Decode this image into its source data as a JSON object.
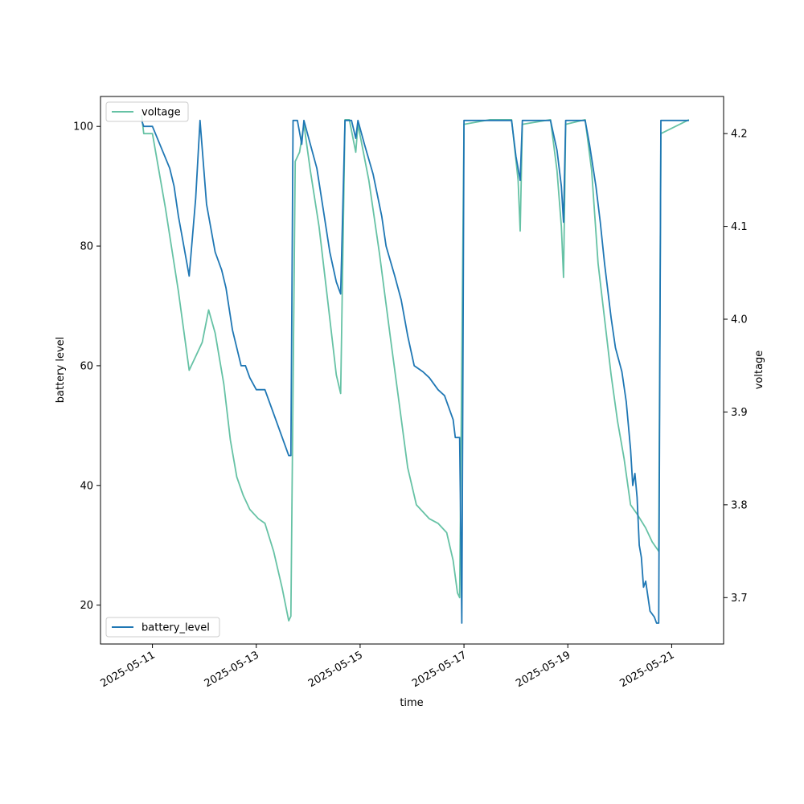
{
  "chart_data": {
    "type": "line",
    "xlabel": "time",
    "ylabel_left": "battery level",
    "ylabel_right": "voltage",
    "x_range": [
      "2025-05-10T00:00",
      "2025-05-22T00:00"
    ],
    "x_ticks": [
      "2025-05-11",
      "2025-05-13",
      "2025-05-15",
      "2025-05-17",
      "2025-05-19",
      "2025-05-21"
    ],
    "ylim_left": [
      13.5,
      105
    ],
    "y_ticks_left": [
      20,
      40,
      60,
      80,
      100
    ],
    "ylim_right": [
      3.65,
      4.24
    ],
    "y_ticks_right": [
      3.7,
      3.8,
      3.9,
      4.0,
      4.1,
      4.2
    ],
    "grid": false,
    "series": [
      {
        "name": "battery_level",
        "axis": "left",
        "color": "#1f77b4",
        "legend_position": "lower-left",
        "points": [
          [
            "2025-05-10T19:00",
            101
          ],
          [
            "2025-05-10T20:00",
            100
          ],
          [
            "2025-05-11T00:00",
            100
          ],
          [
            "2025-05-11T08:00",
            93
          ],
          [
            "2025-05-11T10:00",
            90
          ],
          [
            "2025-05-11T12:00",
            85
          ],
          [
            "2025-05-11T14:00",
            81
          ],
          [
            "2025-05-11T17:00",
            75
          ],
          [
            "2025-05-11T20:00",
            88
          ],
          [
            "2025-05-11T22:00",
            101
          ],
          [
            "2025-05-12T01:00",
            87
          ],
          [
            "2025-05-12T05:00",
            79
          ],
          [
            "2025-05-12T08:00",
            76
          ],
          [
            "2025-05-12T10:00",
            73
          ],
          [
            "2025-05-12T13:00",
            66
          ],
          [
            "2025-05-12T15:00",
            63
          ],
          [
            "2025-05-12T17:00",
            60
          ],
          [
            "2025-05-12T19:00",
            60
          ],
          [
            "2025-05-12T21:00",
            58
          ],
          [
            "2025-05-13T00:00",
            56
          ],
          [
            "2025-05-13T04:00",
            56
          ],
          [
            "2025-05-13T09:00",
            51
          ],
          [
            "2025-05-13T14:00",
            46
          ],
          [
            "2025-05-13T15:00",
            45
          ],
          [
            "2025-05-13T16:00",
            45
          ],
          [
            "2025-05-13T17:00",
            101
          ],
          [
            "2025-05-13T19:00",
            101
          ],
          [
            "2025-05-13T21:00",
            97
          ],
          [
            "2025-05-13T22:00",
            101
          ],
          [
            "2025-05-14T01:00",
            97
          ],
          [
            "2025-05-14T04:00",
            93
          ],
          [
            "2025-05-14T07:00",
            86
          ],
          [
            "2025-05-14T10:00",
            79
          ],
          [
            "2025-05-14T13:00",
            74
          ],
          [
            "2025-05-14T15:00",
            72
          ],
          [
            "2025-05-14T17:00",
            101
          ],
          [
            "2025-05-14T20:00",
            101
          ],
          [
            "2025-05-14T22:00",
            98
          ],
          [
            "2025-05-14T23:00",
            101
          ],
          [
            "2025-05-15T02:00",
            97
          ],
          [
            "2025-05-15T06:00",
            92
          ],
          [
            "2025-05-15T10:00",
            85
          ],
          [
            "2025-05-15T12:00",
            80
          ],
          [
            "2025-05-15T16:00",
            75
          ],
          [
            "2025-05-15T19:00",
            71
          ],
          [
            "2025-05-15T22:00",
            65
          ],
          [
            "2025-05-16T01:00",
            60
          ],
          [
            "2025-05-16T05:00",
            59
          ],
          [
            "2025-05-16T08:00",
            58
          ],
          [
            "2025-05-16T12:00",
            56
          ],
          [
            "2025-05-16T15:00",
            55
          ],
          [
            "2025-05-16T19:00",
            51
          ],
          [
            "2025-05-16T20:00",
            48
          ],
          [
            "2025-05-16T22:00",
            48
          ],
          [
            "2025-05-16T23:00",
            17
          ],
          [
            "2025-05-17T00:00",
            101
          ],
          [
            "2025-05-17T12:00",
            101
          ],
          [
            "2025-05-17T20:00",
            101
          ],
          [
            "2025-05-17T22:00",
            101
          ],
          [
            "2025-05-18T00:00",
            95
          ],
          [
            "2025-05-18T02:00",
            91
          ],
          [
            "2025-05-18T03:00",
            101
          ],
          [
            "2025-05-18T10:00",
            101
          ],
          [
            "2025-05-18T16:00",
            101
          ],
          [
            "2025-05-18T19:00",
            96
          ],
          [
            "2025-05-18T21:00",
            90
          ],
          [
            "2025-05-18T22:00",
            84
          ],
          [
            "2025-05-18T23:00",
            101
          ],
          [
            "2025-05-19T08:00",
            101
          ],
          [
            "2025-05-19T10:00",
            97
          ],
          [
            "2025-05-19T13:00",
            90
          ],
          [
            "2025-05-19T15:00",
            84
          ],
          [
            "2025-05-19T17:00",
            77
          ],
          [
            "2025-05-19T20:00",
            68
          ],
          [
            "2025-05-19T22:00",
            63
          ],
          [
            "2025-05-20T01:00",
            59
          ],
          [
            "2025-05-20T03:00",
            54
          ],
          [
            "2025-05-20T05:00",
            46
          ],
          [
            "2025-05-20T06:00",
            40
          ],
          [
            "2025-05-20T07:00",
            42
          ],
          [
            "2025-05-20T08:00",
            38
          ],
          [
            "2025-05-20T09:00",
            30
          ],
          [
            "2025-05-20T10:00",
            28
          ],
          [
            "2025-05-20T11:00",
            23
          ],
          [
            "2025-05-20T12:00",
            24
          ],
          [
            "2025-05-20T14:00",
            19
          ],
          [
            "2025-05-20T16:00",
            18
          ],
          [
            "2025-05-20T17:00",
            17
          ],
          [
            "2025-05-20T18:00",
            17
          ],
          [
            "2025-05-20T19:00",
            101
          ],
          [
            "2025-05-21T08:00",
            101
          ]
        ]
      },
      {
        "name": "voltage",
        "axis": "right",
        "color": "#66c2a5",
        "legend_position": "upper-left",
        "points": [
          [
            "2025-05-10T19:00",
            4.22
          ],
          [
            "2025-05-10T20:00",
            4.2
          ],
          [
            "2025-05-11T00:00",
            4.2
          ],
          [
            "2025-05-11T06:00",
            4.12
          ],
          [
            "2025-05-11T12:00",
            4.03
          ],
          [
            "2025-05-11T17:00",
            3.945
          ],
          [
            "2025-05-11T20:00",
            3.96
          ],
          [
            "2025-05-11T23:00",
            3.975
          ],
          [
            "2025-05-12T02:00",
            4.01
          ],
          [
            "2025-05-12T05:00",
            3.985
          ],
          [
            "2025-05-12T09:00",
            3.93
          ],
          [
            "2025-05-12T12:00",
            3.87
          ],
          [
            "2025-05-12T15:00",
            3.83
          ],
          [
            "2025-05-12T18:00",
            3.81
          ],
          [
            "2025-05-12T21:00",
            3.795
          ],
          [
            "2025-05-13T01:00",
            3.785
          ],
          [
            "2025-05-13T04:00",
            3.78
          ],
          [
            "2025-05-13T08:00",
            3.75
          ],
          [
            "2025-05-13T12:00",
            3.71
          ],
          [
            "2025-05-13T15:00",
            3.675
          ],
          [
            "2025-05-13T16:00",
            3.68
          ],
          [
            "2025-05-13T18:00",
            4.17
          ],
          [
            "2025-05-13T20:00",
            4.18
          ],
          [
            "2025-05-13T22:00",
            4.21
          ],
          [
            "2025-05-14T01:00",
            4.16
          ],
          [
            "2025-05-14T05:00",
            4.1
          ],
          [
            "2025-05-14T09:00",
            4.02
          ],
          [
            "2025-05-14T13:00",
            3.94
          ],
          [
            "2025-05-14T15:00",
            3.92
          ],
          [
            "2025-05-14T17:00",
            4.215
          ],
          [
            "2025-05-14T19:00",
            4.215
          ],
          [
            "2025-05-14T22:00",
            4.18
          ],
          [
            "2025-05-14T23:00",
            4.21
          ],
          [
            "2025-05-15T04:00",
            4.15
          ],
          [
            "2025-05-15T09:00",
            4.07
          ],
          [
            "2025-05-15T14:00",
            3.98
          ],
          [
            "2025-05-15T18:00",
            3.91
          ],
          [
            "2025-05-15T22:00",
            3.84
          ],
          [
            "2025-05-16T02:00",
            3.8
          ],
          [
            "2025-05-16T08:00",
            3.785
          ],
          [
            "2025-05-16T12:00",
            3.78
          ],
          [
            "2025-05-16T16:00",
            3.77
          ],
          [
            "2025-05-16T19:00",
            3.74
          ],
          [
            "2025-05-16T21:00",
            3.705
          ],
          [
            "2025-05-16T22:00",
            3.7
          ],
          [
            "2025-05-17T00:00",
            4.21
          ],
          [
            "2025-05-17T12:00",
            4.215
          ],
          [
            "2025-05-17T22:00",
            4.215
          ],
          [
            "2025-05-18T01:00",
            4.15
          ],
          [
            "2025-05-18T02:00",
            4.095
          ],
          [
            "2025-05-18T03:00",
            4.21
          ],
          [
            "2025-05-18T16:00",
            4.215
          ],
          [
            "2025-05-18T19:00",
            4.16
          ],
          [
            "2025-05-18T21:00",
            4.1
          ],
          [
            "2025-05-18T22:00",
            4.045
          ],
          [
            "2025-05-18T23:00",
            4.21
          ],
          [
            "2025-05-19T08:00",
            4.215
          ],
          [
            "2025-05-19T11:00",
            4.16
          ],
          [
            "2025-05-19T14:00",
            4.06
          ],
          [
            "2025-05-19T17:00",
            4.0
          ],
          [
            "2025-05-19T20:00",
            3.94
          ],
          [
            "2025-05-19T23:00",
            3.89
          ],
          [
            "2025-05-20T02:00",
            3.85
          ],
          [
            "2025-05-20T05:00",
            3.8
          ],
          [
            "2025-05-20T08:00",
            3.79
          ],
          [
            "2025-05-20T12:00",
            3.775
          ],
          [
            "2025-05-20T15:00",
            3.76
          ],
          [
            "2025-05-20T18:00",
            3.75
          ],
          [
            "2025-05-20T19:00",
            4.2
          ],
          [
            "2025-05-21T08:00",
            4.215
          ]
        ]
      }
    ]
  }
}
